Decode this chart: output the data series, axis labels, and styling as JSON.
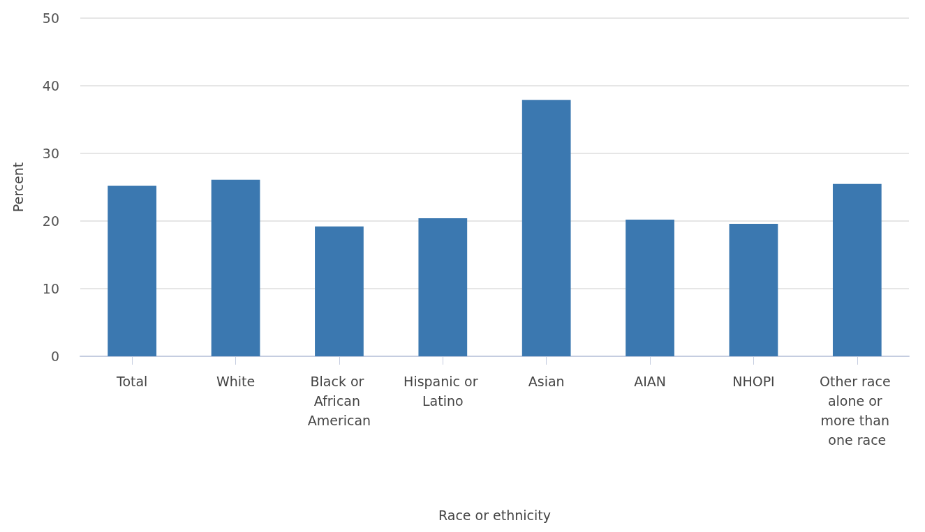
{
  "chart_data": {
    "type": "bar",
    "xlabel": "Race or ethnicity",
    "ylabel": "Percent",
    "categories": [
      "Total",
      "White",
      "Black or African American",
      "Hispanic or Latino",
      "Asian",
      "AIAN",
      "NHOPI",
      "Other race alone or more than one race"
    ],
    "values": [
      25.2,
      26.1,
      19.2,
      20.4,
      37.9,
      20.2,
      19.6,
      25.5
    ],
    "color": "#3b78b0",
    "ylim": [
      0,
      50
    ],
    "yticks": [
      0,
      10,
      20,
      30,
      40,
      50
    ],
    "grid": "y"
  }
}
